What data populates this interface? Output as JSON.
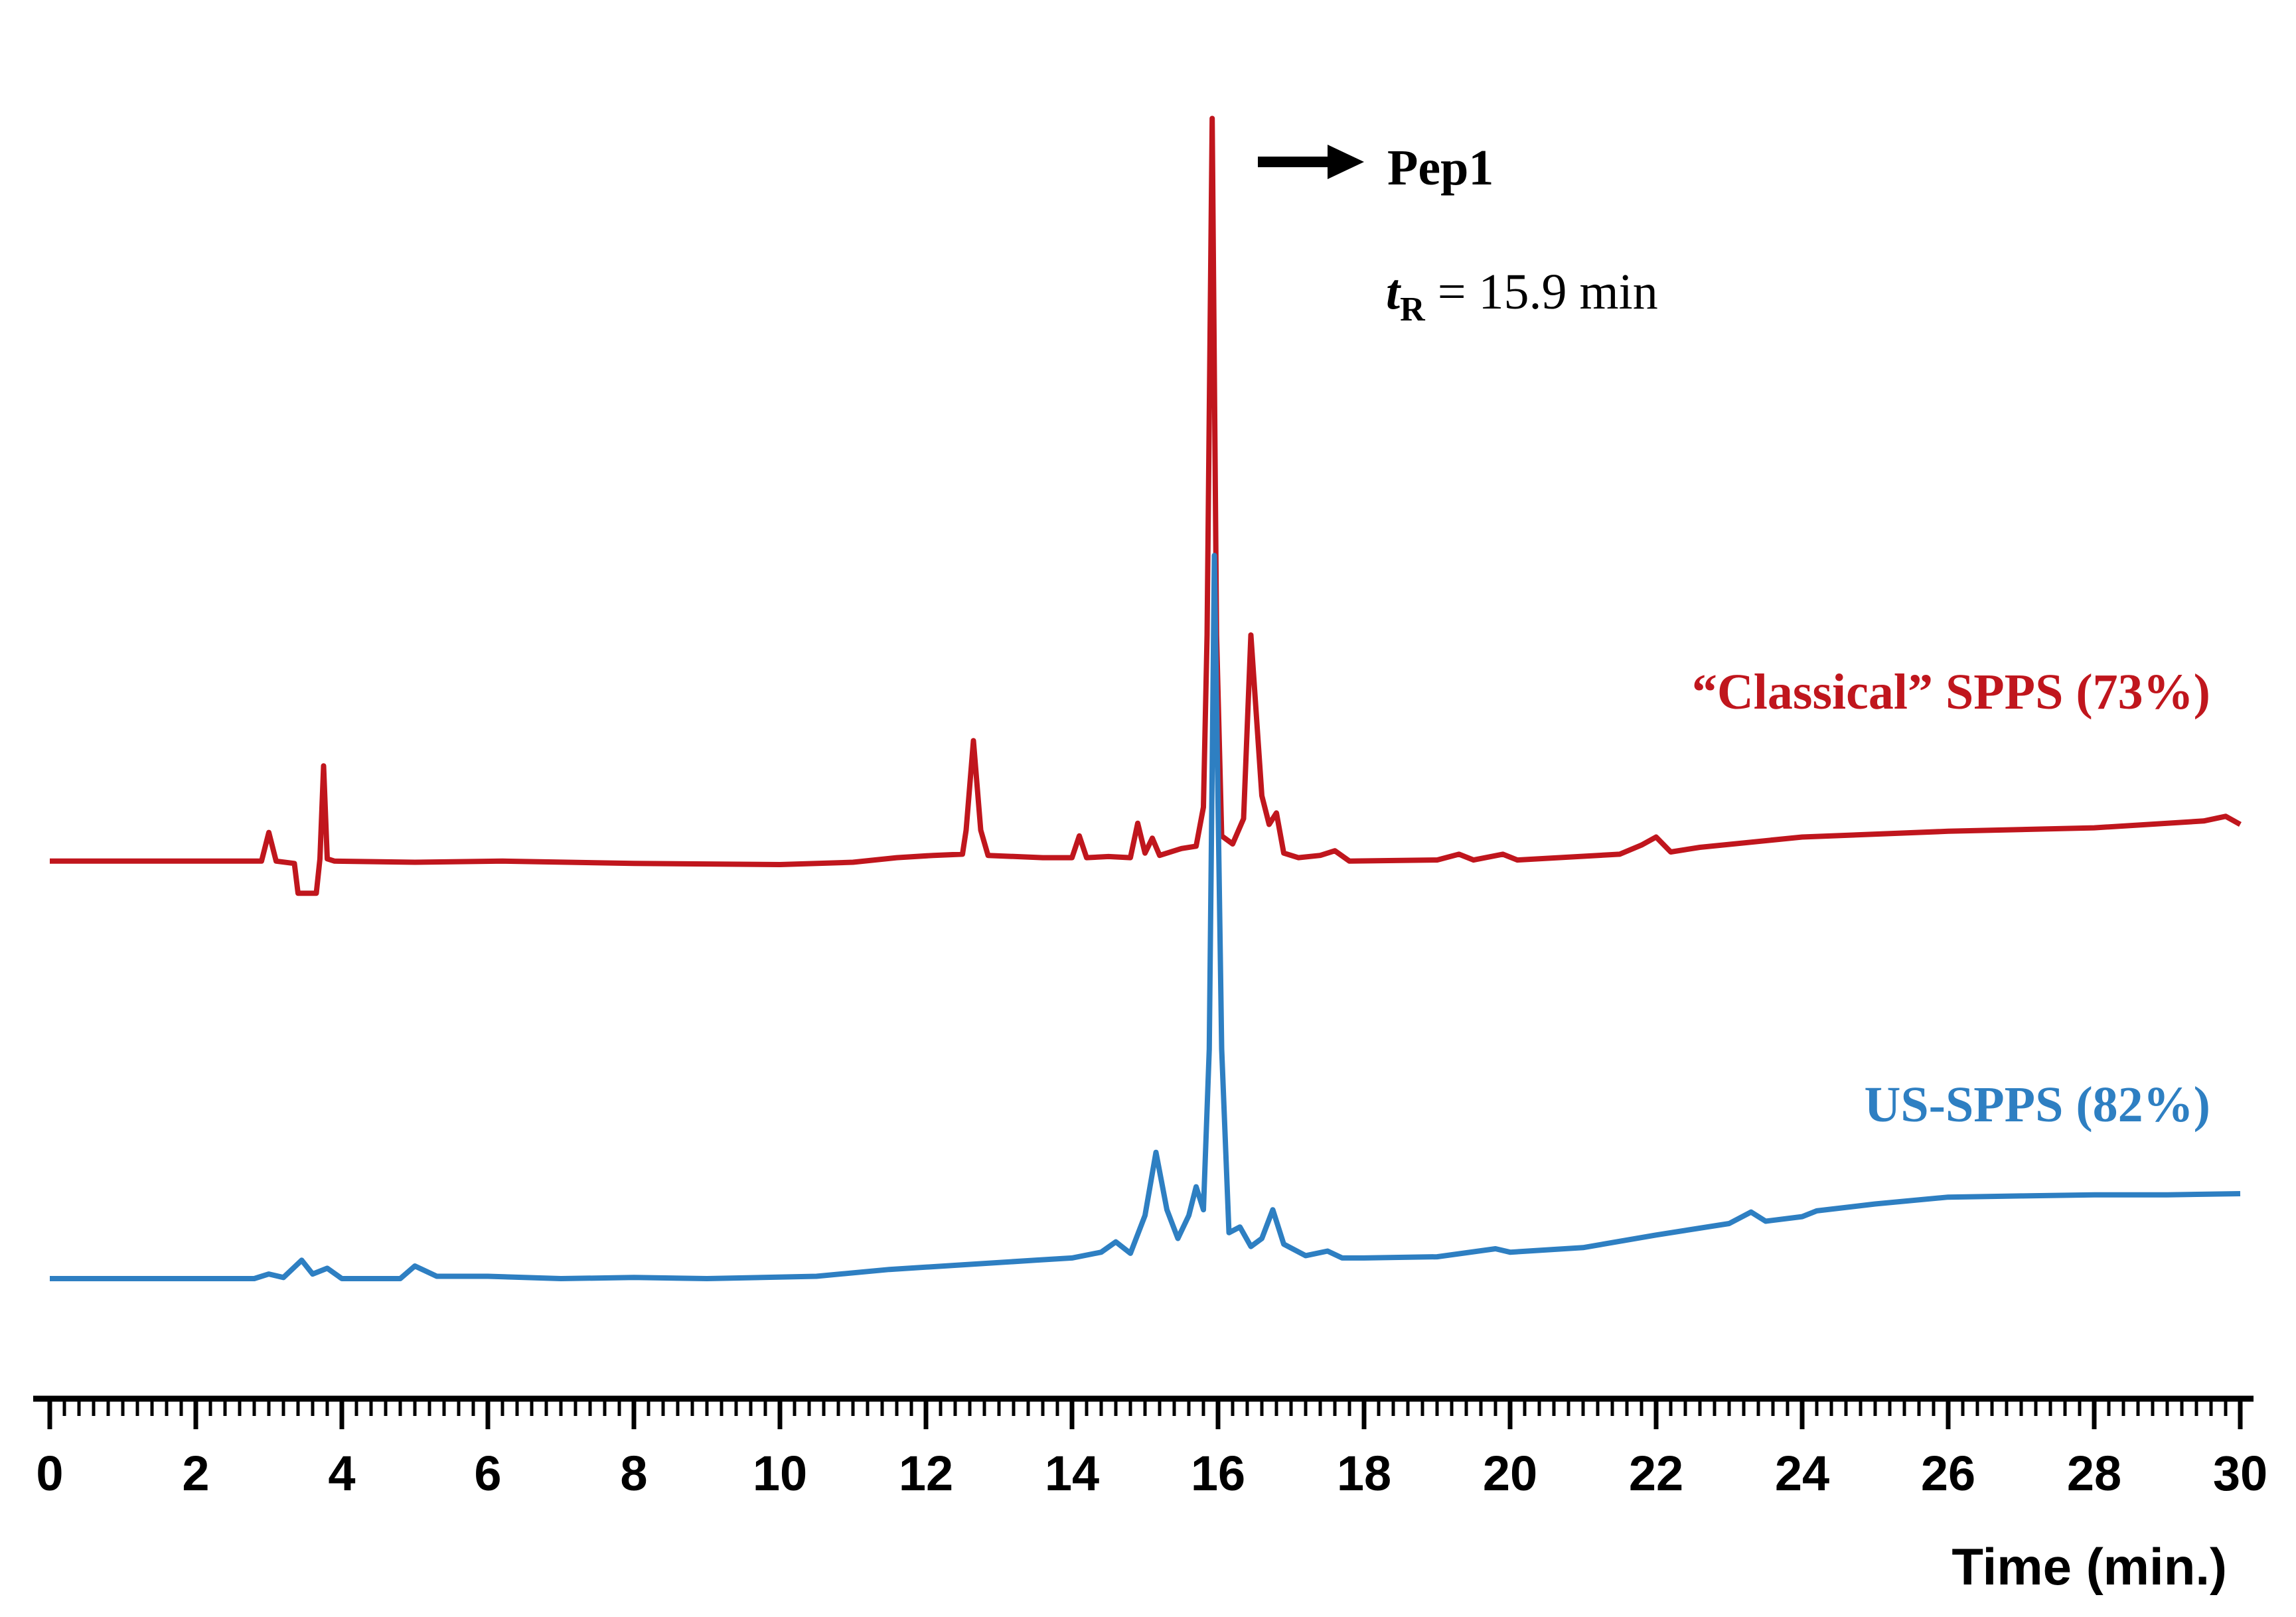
{
  "chart_data": {
    "type": "line",
    "title": "",
    "xlabel": "Time (min.)",
    "ylabel": "",
    "xlim": [
      0,
      30
    ],
    "x_ticks": [
      "0",
      "2",
      "4",
      "6",
      "8",
      "10",
      "12",
      "14",
      "16",
      "18",
      "20",
      "22",
      "24",
      "26",
      "28",
      "30"
    ],
    "annotation": {
      "peak_label": "Pep1",
      "tr_symbol": "t",
      "tr_subscript": "R",
      "tr_value": " = 15.9 min"
    },
    "series": [
      {
        "name": "“Classical” SPPS (73%)",
        "color": "#c0161d",
        "points": [
          [
            0,
            0.3
          ],
          [
            2.9,
            0.3
          ],
          [
            3.0,
            2.8
          ],
          [
            3.1,
            0.3
          ],
          [
            3.35,
            0.1
          ],
          [
            3.4,
            -2.5
          ],
          [
            3.65,
            -2.5
          ],
          [
            3.7,
            0.5
          ],
          [
            3.75,
            8.6
          ],
          [
            3.8,
            0.5
          ],
          [
            3.9,
            0.3
          ],
          [
            5.0,
            0.2
          ],
          [
            6.2,
            0.3
          ],
          [
            8.0,
            0.1
          ],
          [
            10.0,
            0.0
          ],
          [
            11.0,
            0.2
          ],
          [
            11.6,
            0.6
          ],
          [
            12.1,
            0.8
          ],
          [
            12.5,
            0.9
          ],
          [
            12.55,
            3.0
          ],
          [
            12.65,
            10.8
          ],
          [
            12.75,
            3.0
          ],
          [
            12.85,
            0.8
          ],
          [
            13.6,
            0.6
          ],
          [
            14.0,
            0.6
          ],
          [
            14.1,
            2.5
          ],
          [
            14.2,
            0.6
          ],
          [
            14.5,
            0.7
          ],
          [
            14.8,
            0.6
          ],
          [
            14.9,
            3.6
          ],
          [
            15.0,
            1.0
          ],
          [
            15.1,
            2.3
          ],
          [
            15.2,
            0.8
          ],
          [
            15.5,
            1.4
          ],
          [
            15.7,
            1.6
          ],
          [
            15.8,
            5.0
          ],
          [
            15.85,
            20
          ],
          [
            15.92,
            65.0
          ],
          [
            15.98,
            20
          ],
          [
            16.05,
            2.5
          ],
          [
            16.2,
            1.8
          ],
          [
            16.35,
            4.0
          ],
          [
            16.45,
            20.0
          ],
          [
            16.6,
            6.0
          ],
          [
            16.7,
            3.5
          ],
          [
            16.8,
            4.5
          ],
          [
            16.9,
            1.0
          ],
          [
            17.1,
            0.6
          ],
          [
            17.4,
            0.8
          ],
          [
            17.6,
            1.2
          ],
          [
            17.8,
            0.3
          ],
          [
            19.0,
            0.4
          ],
          [
            19.3,
            0.9
          ],
          [
            19.5,
            0.4
          ],
          [
            19.9,
            0.9
          ],
          [
            20.1,
            0.4
          ],
          [
            21.5,
            0.9
          ],
          [
            21.8,
            1.7
          ],
          [
            22.0,
            2.4
          ],
          [
            22.2,
            1.1
          ],
          [
            22.6,
            1.5
          ],
          [
            24.0,
            2.4
          ],
          [
            26.0,
            2.9
          ],
          [
            28.0,
            3.2
          ],
          [
            29.5,
            3.8
          ],
          [
            29.8,
            4.2
          ],
          [
            30.0,
            3.5
          ]
        ]
      },
      {
        "name": "US-SPPS (82%)",
        "color": "#2e7fc2",
        "points": [
          [
            0,
            0.0
          ],
          [
            2.8,
            0.0
          ],
          [
            3.0,
            0.4
          ],
          [
            3.2,
            0.1
          ],
          [
            3.45,
            1.6
          ],
          [
            3.6,
            0.4
          ],
          [
            3.8,
            0.9
          ],
          [
            4.0,
            0.0
          ],
          [
            4.8,
            0.0
          ],
          [
            5.0,
            1.1
          ],
          [
            5.3,
            0.2
          ],
          [
            6.0,
            0.2
          ],
          [
            7.0,
            0.0
          ],
          [
            8.0,
            0.1
          ],
          [
            9.0,
            0.0
          ],
          [
            10.5,
            0.2
          ],
          [
            11.5,
            0.8
          ],
          [
            12.5,
            1.2
          ],
          [
            13.5,
            1.6
          ],
          [
            14.0,
            1.8
          ],
          [
            14.4,
            2.3
          ],
          [
            14.6,
            3.2
          ],
          [
            14.8,
            2.2
          ],
          [
            15.0,
            5.5
          ],
          [
            15.15,
            11.0
          ],
          [
            15.3,
            6.0
          ],
          [
            15.45,
            3.5
          ],
          [
            15.6,
            5.5
          ],
          [
            15.7,
            8.0
          ],
          [
            15.8,
            6.0
          ],
          [
            15.88,
            20
          ],
          [
            15.95,
            63.0
          ],
          [
            16.05,
            20
          ],
          [
            16.15,
            4.0
          ],
          [
            16.3,
            4.5
          ],
          [
            16.45,
            2.8
          ],
          [
            16.6,
            3.5
          ],
          [
            16.75,
            6.0
          ],
          [
            16.9,
            3.0
          ],
          [
            17.2,
            2.0
          ],
          [
            17.5,
            2.4
          ],
          [
            17.7,
            1.8
          ],
          [
            18.0,
            1.8
          ],
          [
            19.0,
            1.9
          ],
          [
            19.8,
            2.6
          ],
          [
            20.0,
            2.3
          ],
          [
            21.0,
            2.7
          ],
          [
            22.0,
            3.8
          ],
          [
            23.0,
            4.8
          ],
          [
            23.3,
            5.8
          ],
          [
            23.5,
            5.0
          ],
          [
            24.0,
            5.4
          ],
          [
            24.2,
            5.9
          ],
          [
            25.0,
            6.5
          ],
          [
            26.0,
            7.1
          ],
          [
            27.0,
            7.2
          ],
          [
            28.0,
            7.3
          ],
          [
            29.0,
            7.3
          ],
          [
            30.0,
            7.4
          ]
        ]
      }
    ]
  }
}
